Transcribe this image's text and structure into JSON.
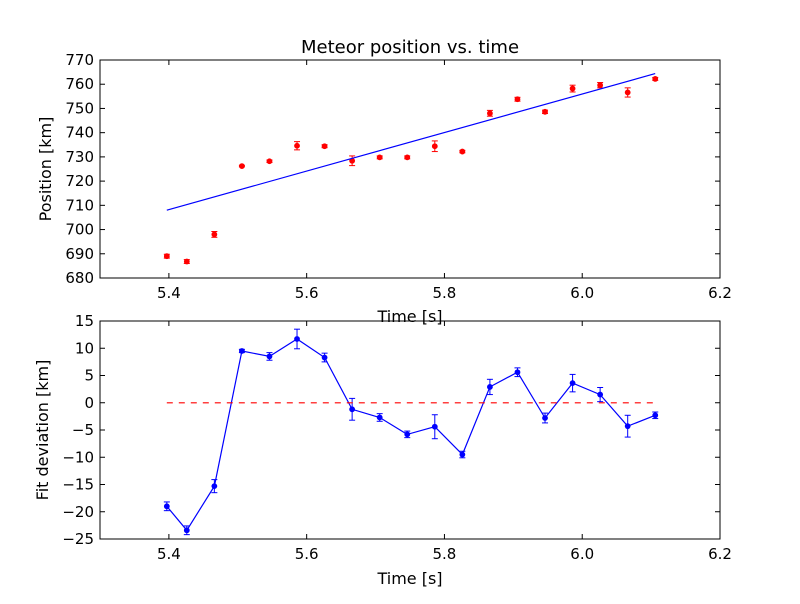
{
  "chart_data": [
    {
      "type": "scatter",
      "title": "Meteor position vs. time",
      "xlabel": "Time [s]",
      "ylabel": "Position [km]",
      "xlim": [
        5.3,
        6.2
      ],
      "ylim": [
        680,
        770
      ],
      "xticks": [
        "5.4",
        "5.6",
        "5.8",
        "6.0",
        "6.2"
      ],
      "yticks": [
        "680",
        "690",
        "700",
        "710",
        "720",
        "730",
        "740",
        "750",
        "760",
        "770"
      ],
      "grid": false,
      "series": [
        {
          "style": "markers-with-errorbars",
          "color": "#ff0000",
          "x": [
            5.397,
            5.426,
            5.466,
            5.506,
            5.546,
            5.586,
            5.626,
            5.666,
            5.706,
            5.746,
            5.786,
            5.826,
            5.866,
            5.906,
            5.946,
            5.986,
            6.026,
            6.066,
            6.106
          ],
          "y": [
            689.0,
            686.8,
            698.0,
            726.2,
            728.2,
            734.6,
            734.4,
            728.4,
            729.8,
            729.8,
            734.4,
            732.2,
            748.0,
            753.8,
            748.6,
            758.2,
            759.6,
            756.6,
            762.2
          ],
          "yerr": [
            0.8,
            0.8,
            1.2,
            0.3,
            0.5,
            1.7,
            0.6,
            2.0,
            0.6,
            0.6,
            2.2,
            0.5,
            1.2,
            0.8,
            0.7,
            1.4,
            1.1,
            1.9,
            0.6
          ]
        },
        {
          "style": "line",
          "color": "#0000ff",
          "x": [
            5.397,
            6.106
          ],
          "y": [
            708.0,
            764.4
          ]
        }
      ]
    },
    {
      "type": "line",
      "title": "",
      "xlabel": "Time [s]",
      "ylabel": "Fit deviation [km]",
      "xlim": [
        5.3,
        6.2
      ],
      "ylim": [
        -25,
        15
      ],
      "xticks": [
        "5.4",
        "5.6",
        "5.8",
        "6.0",
        "6.2"
      ],
      "yticks": [
        "−25",
        "−20",
        "−15",
        "−10",
        "−5",
        "0",
        "5",
        "10",
        "15"
      ],
      "grid": false,
      "series": [
        {
          "style": "line-markers-with-errorbars",
          "color": "#0000ff",
          "x": [
            5.397,
            5.426,
            5.466,
            5.506,
            5.546,
            5.586,
            5.626,
            5.666,
            5.706,
            5.746,
            5.786,
            5.826,
            5.866,
            5.906,
            5.946,
            5.986,
            6.026,
            6.066,
            6.106
          ],
          "y": [
            -19.0,
            -23.4,
            -15.3,
            9.5,
            8.5,
            11.7,
            8.3,
            -1.2,
            -2.7,
            -5.8,
            -4.4,
            -9.5,
            2.9,
            5.6,
            -2.8,
            3.6,
            1.5,
            -4.3,
            -2.3
          ],
          "yerr": [
            0.8,
            0.8,
            1.2,
            0.3,
            0.7,
            1.8,
            0.8,
            2.0,
            0.7,
            0.6,
            2.2,
            0.6,
            1.4,
            0.8,
            0.9,
            1.6,
            1.3,
            2.0,
            0.6
          ]
        },
        {
          "style": "dashed-line",
          "color": "#ff0000",
          "x": [
            5.397,
            6.106
          ],
          "y": [
            0,
            0
          ]
        }
      ]
    }
  ]
}
